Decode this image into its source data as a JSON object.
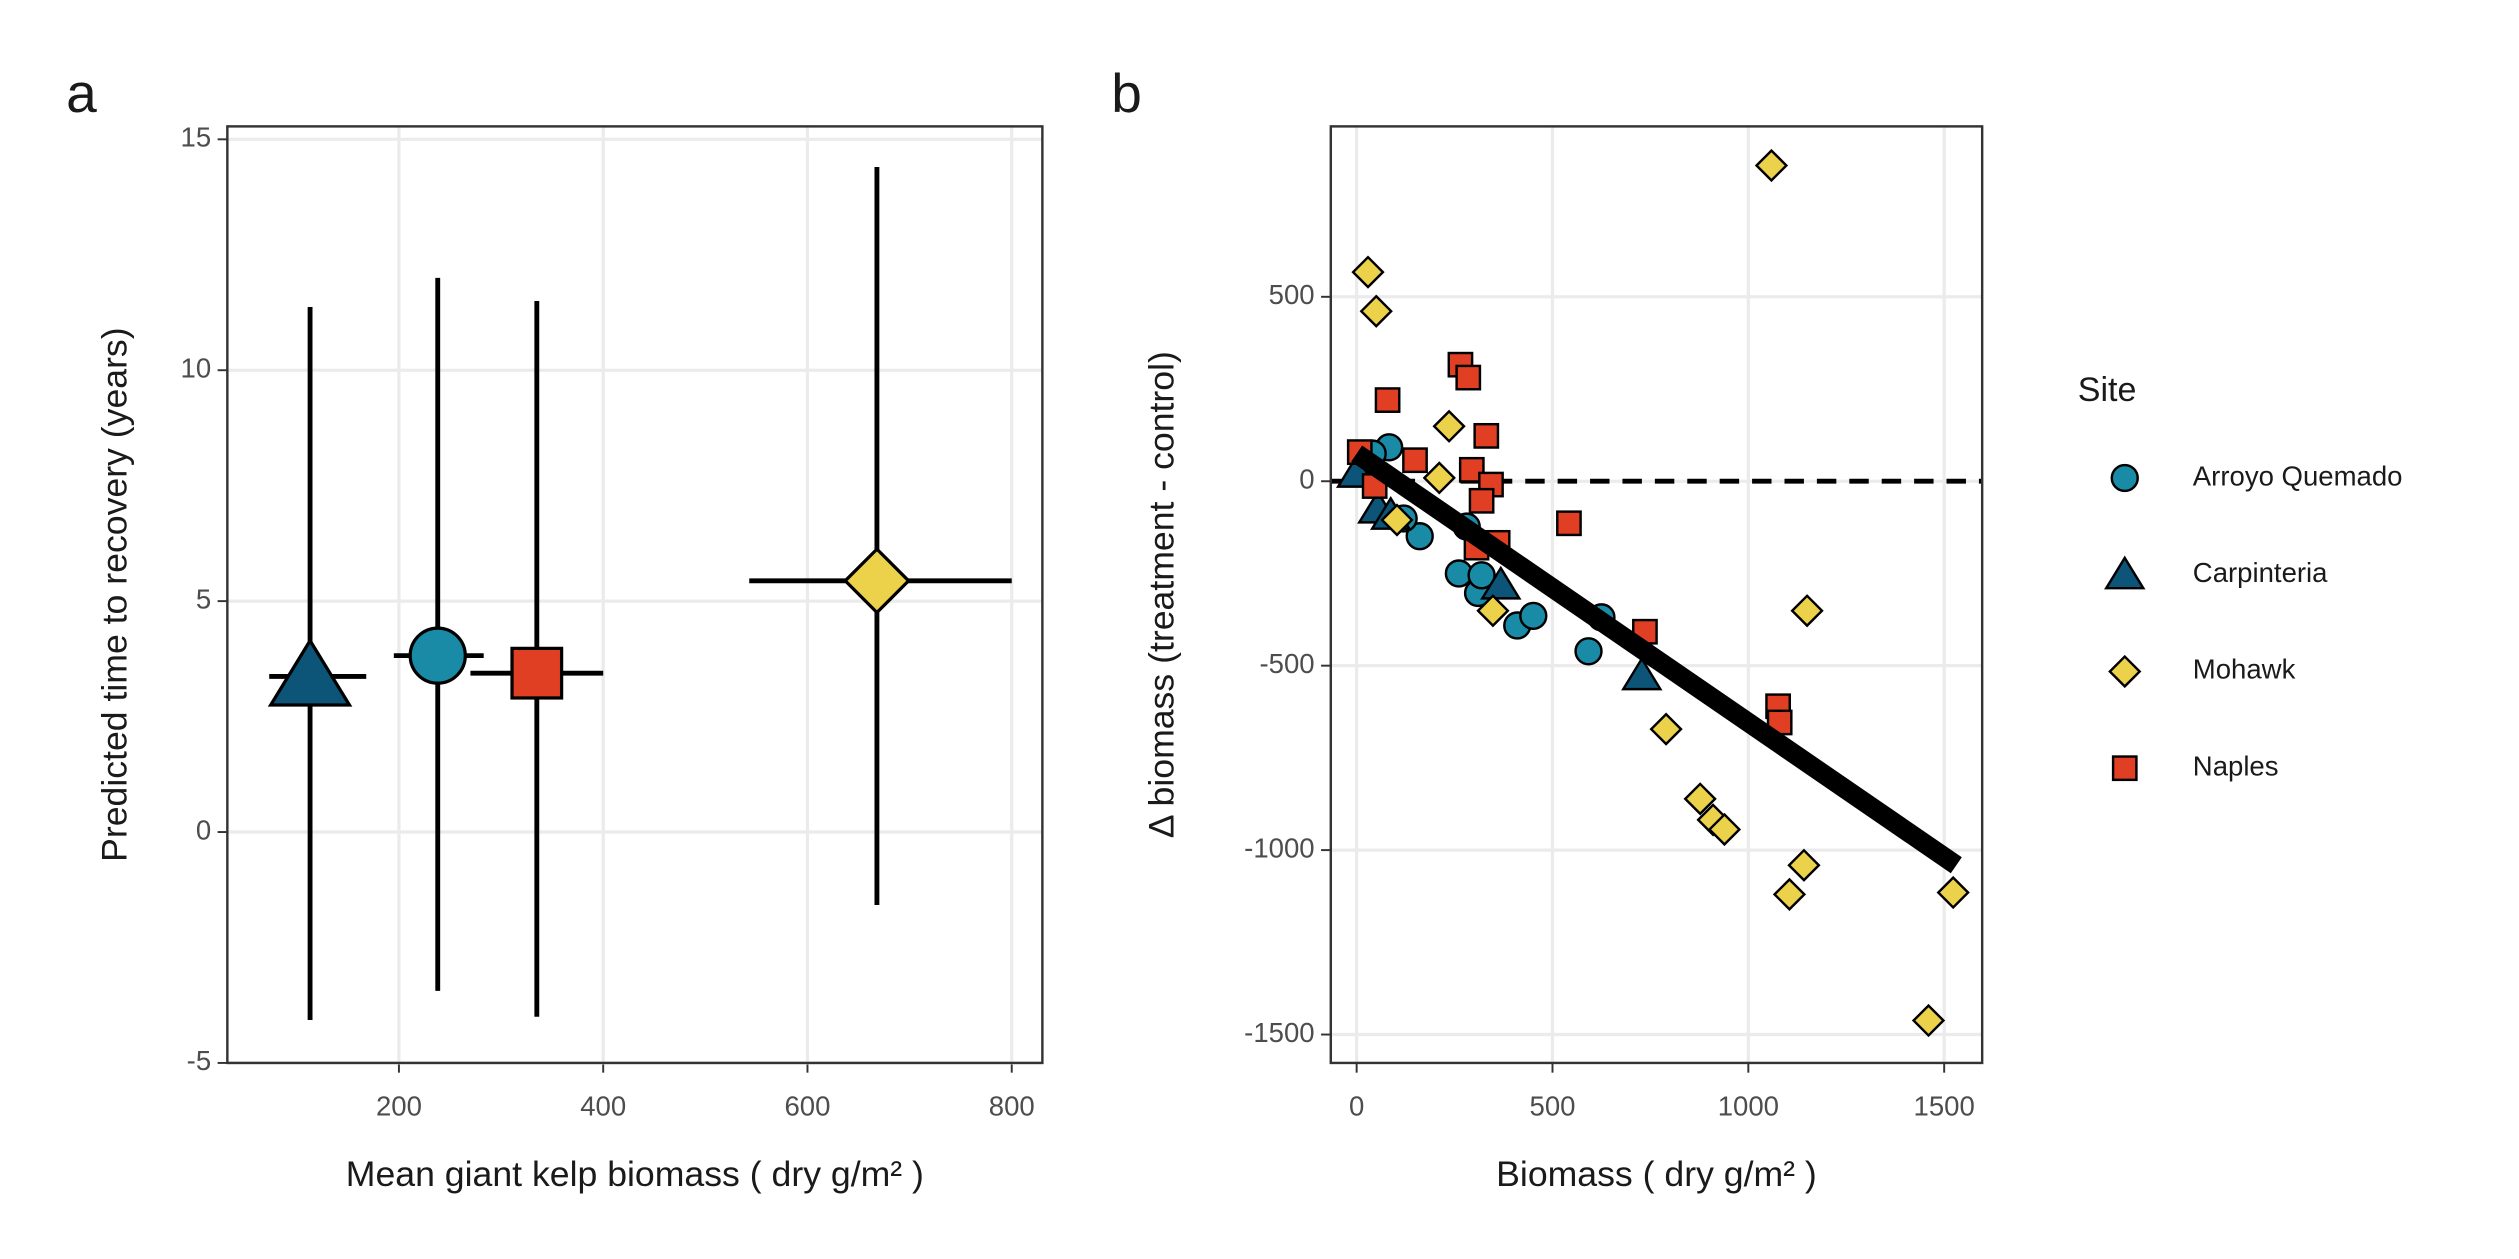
{
  "chart_data": [
    {
      "type": "errorbar",
      "panel_label": "a",
      "x_label": "Mean giant kelp biomass ( dry g/m² )",
      "y_label": "Predicted time to recovery (years)",
      "xlim": [
        32,
        830
      ],
      "ylim": [
        -5,
        15.28
      ],
      "xticks": [
        200,
        400,
        600,
        800
      ],
      "yticks": [
        -5,
        0,
        5,
        10,
        15
      ],
      "grid": true,
      "series": [
        {
          "marker": "triangle",
          "color": "#0c5478",
          "x": [
            113
          ],
          "values": [
            3.37
          ],
          "x_low": [
            73
          ],
          "x_high": [
            168
          ],
          "y_low": [
            -4.07
          ],
          "y_high": [
            11.37
          ]
        },
        {
          "marker": "circle",
          "color": "#1a8ba6",
          "x": [
            238
          ],
          "values": [
            3.82
          ],
          "x_low": [
            195
          ],
          "x_high": [
            283
          ],
          "y_low": [
            -3.44
          ],
          "y_high": [
            12.0
          ]
        },
        {
          "marker": "square",
          "color": "#e03f23",
          "x": [
            335
          ],
          "values": [
            3.44
          ],
          "x_low": [
            270
          ],
          "x_high": [
            400
          ],
          "y_low": [
            -4.0
          ],
          "y_high": [
            11.5
          ]
        },
        {
          "marker": "diamond",
          "color": "#ecd24a",
          "x": [
            668
          ],
          "values": [
            5.44
          ],
          "x_low": [
            543
          ],
          "x_high": [
            800
          ],
          "y_low": [
            -1.58
          ],
          "y_high": [
            14.4
          ]
        }
      ]
    },
    {
      "type": "scatter",
      "panel_label": "b",
      "x_label": "Biomass ( dry g/m² )",
      "y_label": "Δ biomass (treatment - control)",
      "xlim": [
        -66,
        1597
      ],
      "ylim": [
        -1577,
        962
      ],
      "xticks": [
        0,
        500,
        1000,
        1500
      ],
      "yticks": [
        -1500,
        -1000,
        -500,
        0,
        500
      ],
      "grid": true,
      "hline": 0,
      "fit": {
        "x": [
          0,
          1531
        ],
        "values": [
          75,
          -1041
        ]
      },
      "legend_title": "Site",
      "legend": "right",
      "series": [
        {
          "name": "Arroyo Quemado",
          "marker": "circle",
          "color": "#1a8ba6",
          "x": [
            83,
            41,
            161,
            261,
            310,
            319,
            410,
            451,
            592,
            625,
            120,
            281
          ],
          "values": [
            92,
            75,
            -149,
            -250,
            -303,
            -255,
            -391,
            -365,
            -461,
            -369,
            -101,
            -123
          ]
        },
        {
          "name": "Carpinteria",
          "marker": "triangle",
          "color": "#0c5478",
          "x": [
            0,
            54,
            87,
            368,
            728
          ],
          "values": [
            22,
            -75,
            -92,
            -281,
            -527
          ]
        },
        {
          "name": "Mohawk",
          "marker": "diamond",
          "color": "#ecd24a",
          "x": [
            29,
            50,
            1059,
            236,
            211,
            103,
            348,
            790,
            877,
            910,
            939,
            1150,
            1142,
            1105,
            1523,
            1460
          ],
          "values": [
            567,
            461,
            856,
            149,
            9,
            -105,
            -351,
            -672,
            -861,
            -918,
            -944,
            -351,
            -1041,
            -1120,
            -1115,
            -1462
          ]
        },
        {
          "name": "Naples",
          "marker": "square",
          "color": "#e03f23",
          "x": [
            265,
            285,
            79,
            331,
            8,
            149,
            294,
            343,
            319,
            360,
            306,
            542,
            736,
            1076,
            1080,
            46
          ],
          "values": [
            316,
            281,
            220,
            123,
            79,
            57,
            31,
            -9,
            -53,
            -167,
            -180,
            -114,
            -408,
            -610,
            -654,
            -13
          ]
        }
      ]
    }
  ]
}
